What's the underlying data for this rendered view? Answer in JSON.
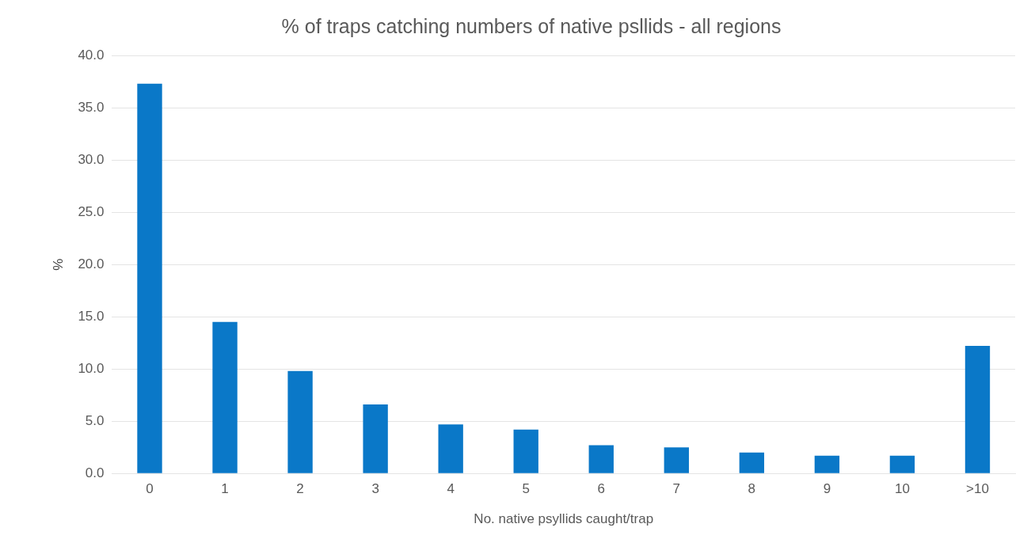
{
  "chart_data": {
    "type": "bar",
    "title": "% of traps catching numbers of native psllids - all regions",
    "xlabel": "No. native psyllids caught/trap",
    "ylabel": "%",
    "categories": [
      "0",
      "1",
      "2",
      "3",
      "4",
      "5",
      "6",
      "7",
      "8",
      "9",
      "10",
      ">10"
    ],
    "values": [
      37.3,
      14.5,
      9.8,
      6.6,
      4.7,
      4.2,
      2.7,
      2.5,
      2.0,
      1.7,
      1.7,
      12.2
    ],
    "color": "#0a78c8",
    "ylim": [
      0,
      40
    ],
    "yticks": [
      {
        "value": 0,
        "label": "0.0"
      },
      {
        "value": 5,
        "label": "5.0"
      },
      {
        "value": 10,
        "label": "10.0"
      },
      {
        "value": 15,
        "label": "15.0"
      },
      {
        "value": 20,
        "label": "20.0"
      },
      {
        "value": 25,
        "label": "25.0"
      },
      {
        "value": 30,
        "label": "30.0"
      },
      {
        "value": 35,
        "label": "35.0"
      },
      {
        "value": 40,
        "label": "40.0"
      }
    ],
    "grid": "y"
  }
}
